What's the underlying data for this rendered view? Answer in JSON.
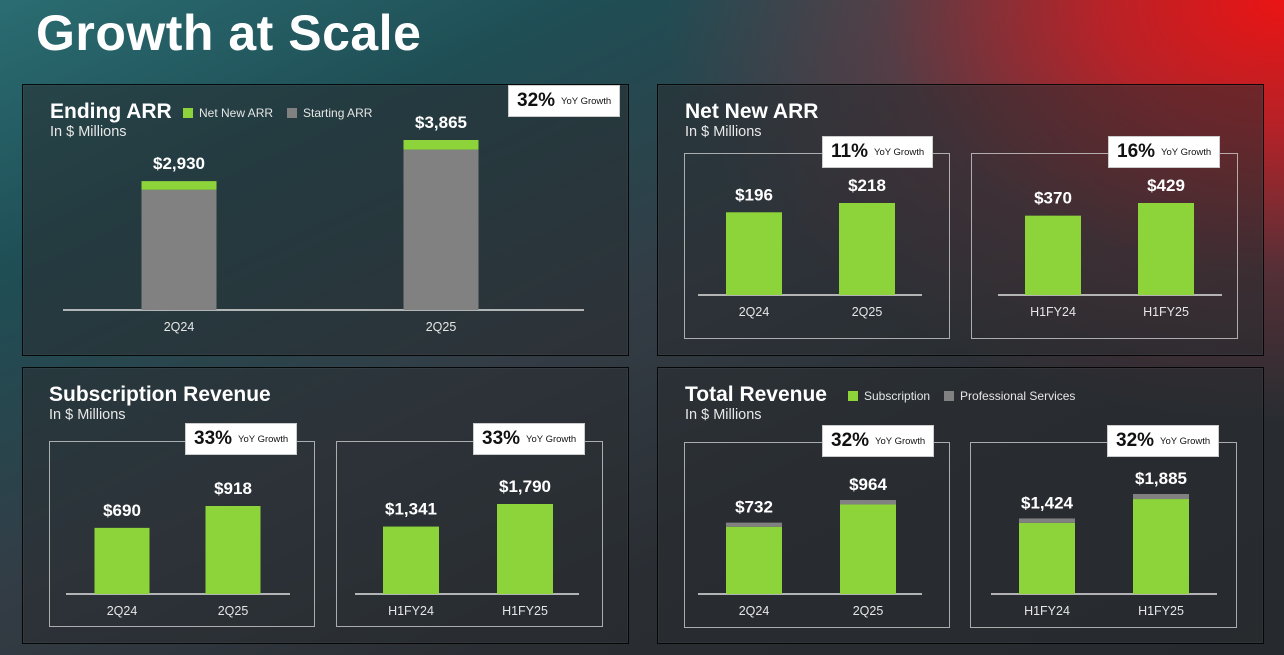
{
  "page": {
    "title": "Growth at Scale"
  },
  "colors": {
    "green": "#8dd43b",
    "gray": "#818181",
    "axis": "#e0e0e0"
  },
  "common": {
    "yoy_label": "YoY Growth",
    "units": "In $ Millions"
  },
  "panels": {
    "ending_arr": {
      "title": "Ending ARR",
      "legend": [
        {
          "label": "Net New ARR",
          "color": "#8dd43b"
        },
        {
          "label": "Starting ARR",
          "color": "#818181"
        }
      ],
      "yoy": "32%"
    },
    "net_new_arr": {
      "title": "Net New ARR",
      "yoy_left": "11%",
      "yoy_right": "16%"
    },
    "subscription_revenue": {
      "title": "Subscription Revenue",
      "yoy_left": "33%",
      "yoy_right": "33%"
    },
    "total_revenue": {
      "title": "Total Revenue",
      "legend": [
        {
          "label": "Subscription",
          "color": "#8dd43b"
        },
        {
          "label": "Professional Services",
          "color": "#818181"
        }
      ],
      "yoy_left": "32%",
      "yoy_right": "32%"
    }
  },
  "chart_data": [
    {
      "id": "ending_arr",
      "type": "bar",
      "stacked": true,
      "title": "Ending ARR",
      "ylabel": "In $ Millions",
      "categories": [
        "2Q24",
        "2Q25"
      ],
      "series": [
        {
          "name": "Starting ARR",
          "values": [
            2734,
            3647
          ]
        },
        {
          "name": "Net New ARR",
          "values": [
            196,
            218
          ]
        }
      ],
      "totals": [
        "$2,930",
        "$3,865"
      ],
      "ylim": [
        0,
        4000
      ]
    },
    {
      "id": "net_new_arr_quarter",
      "type": "bar",
      "title": "Net New ARR",
      "ylabel": "In $ Millions",
      "categories": [
        "2Q24",
        "2Q25"
      ],
      "series": [
        {
          "name": "Net New ARR",
          "values": [
            196,
            218
          ]
        }
      ],
      "labels": [
        "$196",
        "$218"
      ],
      "ylim": [
        0,
        300
      ]
    },
    {
      "id": "net_new_arr_half",
      "type": "bar",
      "title": "Net New ARR",
      "ylabel": "In $ Millions",
      "categories": [
        "H1FY24",
        "H1FY25"
      ],
      "series": [
        {
          "name": "Net New ARR",
          "values": [
            370,
            429
          ]
        }
      ],
      "labels": [
        "$370",
        "$429"
      ],
      "ylim": [
        0,
        580
      ]
    },
    {
      "id": "subscription_revenue_quarter",
      "type": "bar",
      "title": "Subscription Revenue",
      "ylabel": "In $ Millions",
      "categories": [
        "2Q24",
        "2Q25"
      ],
      "series": [
        {
          "name": "Subscription Revenue",
          "values": [
            690,
            918
          ]
        }
      ],
      "labels": [
        "$690",
        "$918"
      ],
      "ylim": [
        0,
        1350
      ]
    },
    {
      "id": "subscription_revenue_half",
      "type": "bar",
      "title": "Subscription Revenue",
      "ylabel": "In $ Millions",
      "categories": [
        "H1FY24",
        "H1FY25"
      ],
      "series": [
        {
          "name": "Subscription Revenue",
          "values": [
            1341,
            1790
          ]
        }
      ],
      "labels": [
        "$1,341",
        "$1,790"
      ],
      "ylim": [
        0,
        2650
      ]
    },
    {
      "id": "total_revenue_quarter",
      "type": "bar",
      "stacked": true,
      "title": "Total Revenue",
      "ylabel": "In $ Millions",
      "categories": [
        "2Q24",
        "2Q25"
      ],
      "series": [
        {
          "name": "Subscription",
          "values": [
            690,
            918
          ]
        },
        {
          "name": "Professional Services",
          "values": [
            42,
            46
          ]
        }
      ],
      "totals": [
        "$732",
        "$964"
      ],
      "ylim": [
        0,
        1400
      ]
    },
    {
      "id": "total_revenue_half",
      "type": "bar",
      "stacked": true,
      "title": "Total Revenue",
      "ylabel": "In $ Millions",
      "categories": [
        "H1FY24",
        "H1FY25"
      ],
      "series": [
        {
          "name": "Subscription",
          "values": [
            1341,
            1790
          ]
        },
        {
          "name": "Professional Services",
          "values": [
            83,
            95
          ]
        }
      ],
      "totals": [
        "$1,424",
        "$1,885"
      ],
      "ylim": [
        0,
        2750
      ]
    }
  ]
}
